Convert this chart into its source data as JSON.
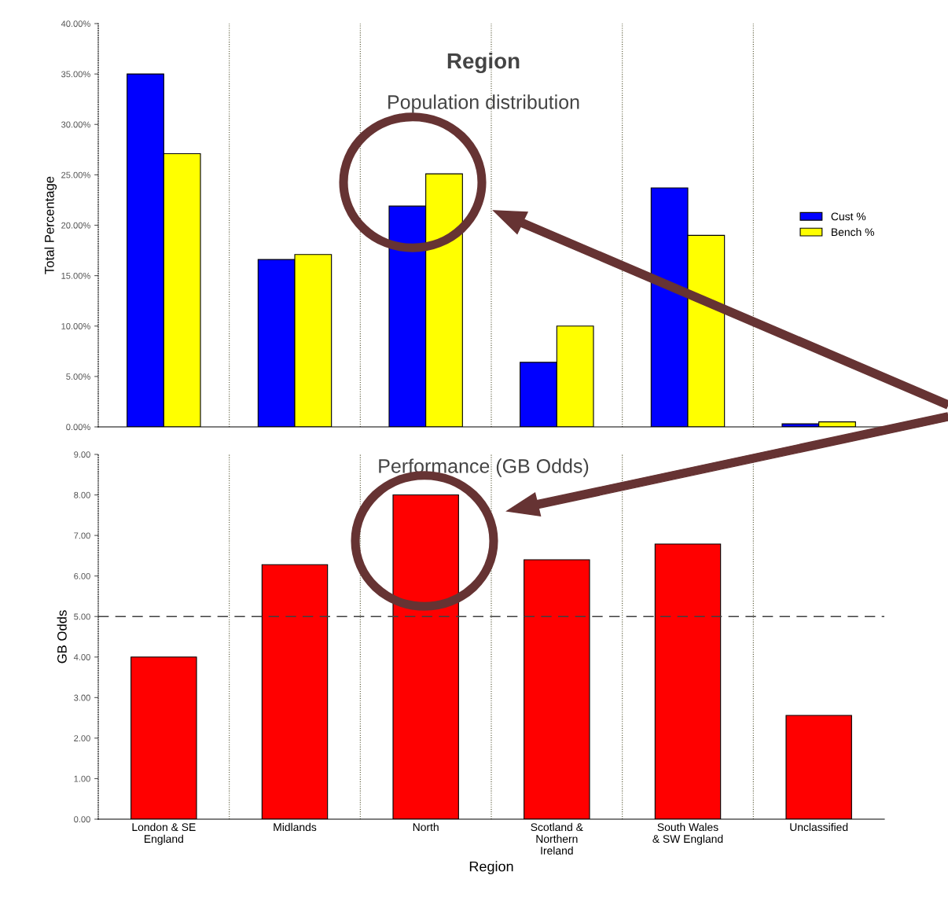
{
  "chart_data": [
    {
      "type": "bar",
      "title": "Region",
      "subtitle": "Population distribution",
      "ylabel": "Total Percentage",
      "categories": [
        null,
        null,
        null,
        null,
        null,
        null
      ],
      "series": [
        {
          "name": "Cust %",
          "color": "#0000ff",
          "values": [
            35.0,
            16.6,
            21.9,
            6.4,
            23.7,
            0.3
          ]
        },
        {
          "name": "Bench %",
          "color": "#ffff00",
          "values": [
            27.1,
            17.1,
            25.1,
            10.0,
            19.0,
            0.5
          ]
        }
      ],
      "ylim": [
        0,
        40
      ],
      "yticks": [
        {
          "value": 0,
          "label": "0.00%"
        },
        {
          "value": 5,
          "label": "5.00%"
        },
        {
          "value": 10,
          "label": "10.00%"
        },
        {
          "value": 15,
          "label": "15.00%"
        },
        {
          "value": 20,
          "label": "20.00%"
        },
        {
          "value": 25,
          "label": "25.00%"
        },
        {
          "value": 30,
          "label": "30.00%"
        },
        {
          "value": 35,
          "label": "35.00%"
        },
        {
          "value": 40,
          "label": "40.00%"
        }
      ],
      "tick_labels": "y",
      "legend": "right",
      "grid": false
    },
    {
      "type": "bar",
      "title": "Performance (GB Odds)",
      "xlabel": "Region",
      "ylabel": "GB Odds",
      "categories": [
        "London & SE England",
        "Midlands",
        "North",
        "Scotland & Northern Ireland",
        "South Wales & SW England",
        "Unclassified"
      ],
      "series": [
        {
          "color": "#ff0000",
          "values": [
            4.0,
            6.28,
            8.0,
            6.4,
            6.79,
            2.56
          ]
        }
      ],
      "ylim": [
        0,
        9
      ],
      "yticks": [
        {
          "value": 0,
          "label": "0.00"
        },
        {
          "value": 1,
          "label": "1.00"
        },
        {
          "value": 2,
          "label": "2.00"
        },
        {
          "value": 3,
          "label": "3.00"
        },
        {
          "value": 4,
          "label": "4.00"
        },
        {
          "value": 5,
          "label": "5.00"
        },
        {
          "value": 6,
          "label": "6.00"
        },
        {
          "value": 7,
          "label": "7.00"
        },
        {
          "value": 8,
          "label": "8.00"
        },
        {
          "value": 9,
          "label": "9.00"
        }
      ],
      "ref_lines": [
        {
          "axis": "y",
          "value": 5,
          "color": "#404040",
          "line_style": "dashed"
        }
      ],
      "grid": false,
      "legend": false
    }
  ]
}
